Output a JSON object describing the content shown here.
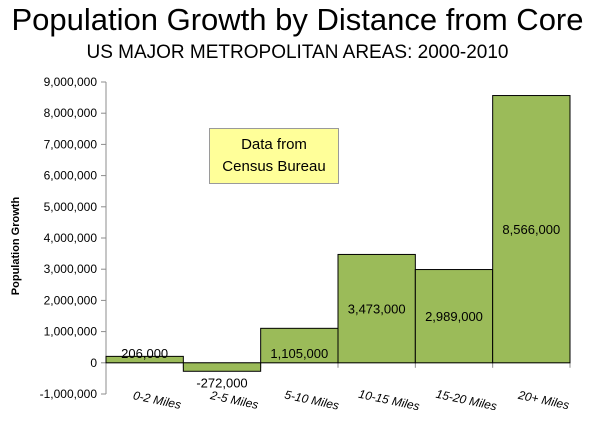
{
  "title": "Population Growth by Distance from Core",
  "subtitle": "US MAJOR METROPOLITAN AREAS: 2000-2010",
  "annotation": {
    "line1": "Data from",
    "line2": "Census Bureau"
  },
  "chart_data": {
    "type": "bar",
    "title": "Population Growth by Distance from Core",
    "subtitle": "US MAJOR METROPOLITAN AREAS: 2000-2010",
    "xlabel": "",
    "ylabel": "Population Growth",
    "categories": [
      "0-2 Miles",
      "2-5 Miles",
      "5-10 Miles",
      "10-15 Miles",
      "15-20 Miles",
      "20+ Miles"
    ],
    "values": [
      206000,
      -272000,
      1105000,
      3473000,
      2989000,
      8566000
    ],
    "data_labels": [
      "206,000",
      "-272,000",
      "1,105,000",
      "3,473,000",
      "2,989,000",
      "8,566,000"
    ],
    "ylim": [
      -1000000,
      9000000
    ],
    "yticks": [
      -1000000,
      0,
      1000000,
      2000000,
      3000000,
      4000000,
      5000000,
      6000000,
      7000000,
      8000000,
      9000000
    ],
    "ytick_labels": [
      "-1,000,000",
      "0",
      "1,000,000",
      "2,000,000",
      "3,000,000",
      "4,000,000",
      "5,000,000",
      "6,000,000",
      "7,000,000",
      "8,000,000",
      "9,000,000"
    ],
    "grid": false,
    "bar_color": "#9bbb59",
    "bar_edge_color": "#000000"
  }
}
